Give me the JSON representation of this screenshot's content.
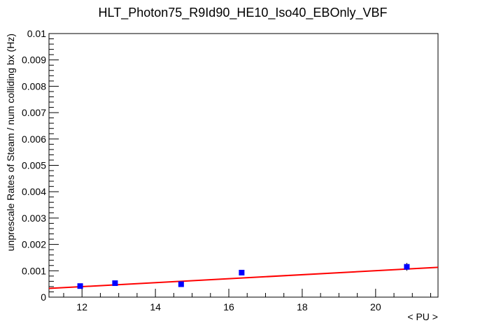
{
  "chart_data": {
    "type": "scatter",
    "title": "HLT_Photon75_R9Id90_HE10_Iso40_EBOnly_VBF",
    "xlabel": "< PU >",
    "ylabel": "unprescale Rates of Steam / num colliding bx (Hz)",
    "xlim": [
      11.1,
      21.7
    ],
    "ylim": [
      0,
      0.01
    ],
    "x_ticks": [
      12,
      14,
      16,
      18,
      20
    ],
    "x_tick_labels": [
      "12",
      "14",
      "16",
      "18",
      "20"
    ],
    "y_ticks": [
      0,
      0.001,
      0.002,
      0.003,
      0.004,
      0.005,
      0.006,
      0.007,
      0.008,
      0.009,
      0.01
    ],
    "y_tick_labels": [
      "0",
      "0.001",
      "0.002",
      "0.003",
      "0.004",
      "0.005",
      "0.006",
      "0.007",
      "0.008",
      "0.009",
      "0.01"
    ],
    "grid": false,
    "series": [
      {
        "marker": "square",
        "color": "#0000ff",
        "points": [
          {
            "x": 11.95,
            "y": 0.00042,
            "yerr": 5e-05
          },
          {
            "x": 12.9,
            "y": 0.00053,
            "yerr": 5e-05
          },
          {
            "x": 14.7,
            "y": 0.00049,
            "yerr": 5e-05
          },
          {
            "x": 16.35,
            "y": 0.00093,
            "yerr": 8e-05
          },
          {
            "x": 20.85,
            "y": 0.00115,
            "yerr": 0.00015
          }
        ]
      }
    ],
    "fit_line": {
      "color": "#ff0000",
      "x": [
        11.1,
        21.7
      ],
      "y": [
        0.00033,
        0.00113
      ]
    }
  }
}
